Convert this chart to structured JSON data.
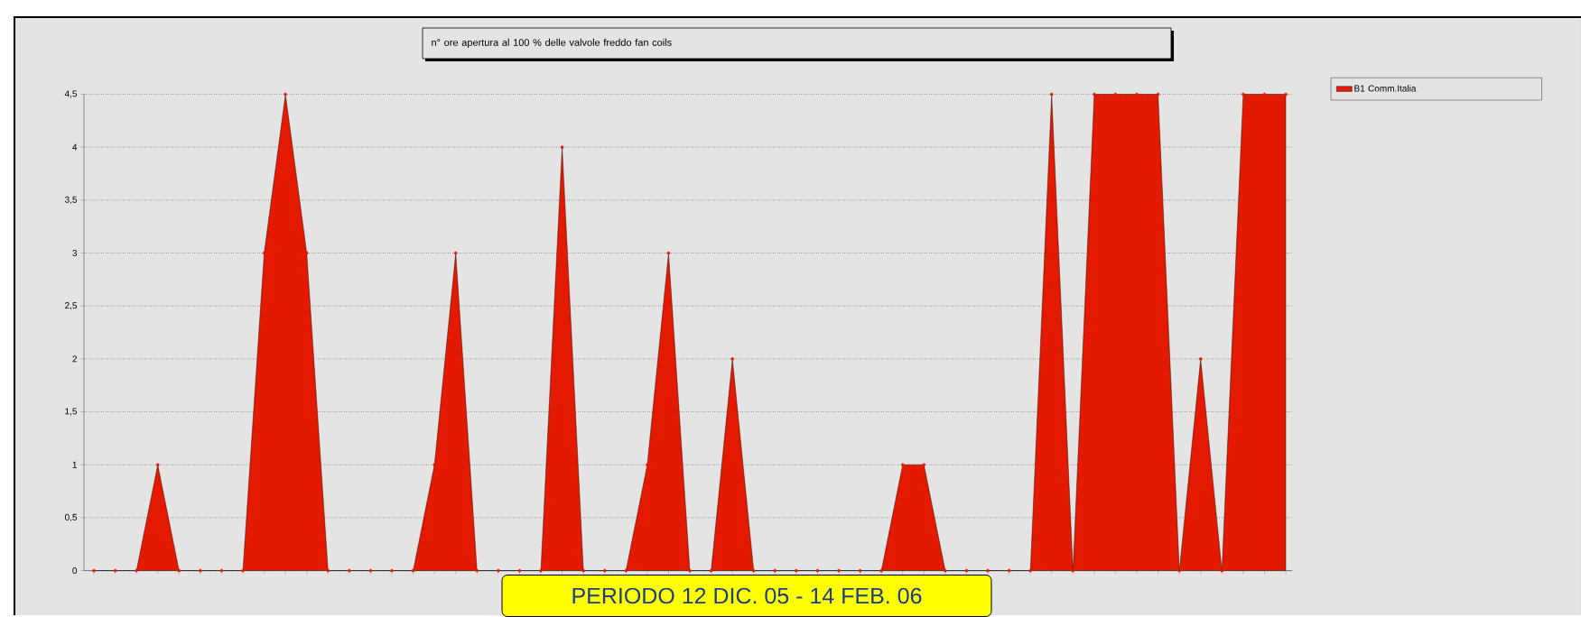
{
  "chart_data": {
    "type": "area",
    "title": "n° ore apertura al 100 %  delle valvole freddo fan coils",
    "categories": [
      null,
      null,
      null,
      null,
      null,
      null,
      null,
      null,
      null,
      null,
      null,
      null,
      null,
      null,
      null,
      null,
      null,
      null,
      null,
      null,
      null,
      null,
      null,
      null,
      null,
      null,
      null,
      null,
      null,
      null,
      null,
      null,
      null,
      null,
      null,
      null,
      null,
      null,
      null,
      null,
      null,
      null,
      null,
      null,
      null,
      null,
      null,
      null,
      null,
      null,
      null,
      null,
      null,
      null,
      null,
      null,
      null
    ],
    "series": [
      {
        "name": "B1 Comm.Italia",
        "color": "#e31a00",
        "values": [
          0,
          0,
          0,
          1,
          0,
          0,
          0,
          0,
          3,
          4.5,
          3,
          0,
          0,
          0,
          0,
          0,
          1,
          3,
          0,
          0,
          0,
          0,
          4,
          0,
          0,
          0,
          1,
          3,
          0,
          0,
          2,
          0,
          0,
          0,
          0,
          0,
          0,
          0,
          1,
          1,
          0,
          0,
          0,
          0,
          0,
          4.5,
          0,
          4.5,
          4.5,
          4.5,
          4.5,
          0,
          2,
          0,
          4.5,
          4.5,
          4.5
        ]
      }
    ],
    "ylim": [
      0,
      4.5
    ],
    "yticks": [
      0,
      {
        "value": 0.5,
        "label": "0,5"
      },
      1,
      {
        "value": 1.5,
        "label": "1,5"
      },
      2,
      {
        "value": 2.5,
        "label": "2,5"
      },
      3,
      {
        "value": 3.5,
        "label": "3,5"
      },
      4,
      {
        "value": 4.5,
        "label": "4,5"
      }
    ],
    "grid": "y",
    "legend": "top right",
    "marker": "circle",
    "annotations": [
      "PERIODO 12 DIC. 05 - 14 FEB. 06"
    ]
  }
}
